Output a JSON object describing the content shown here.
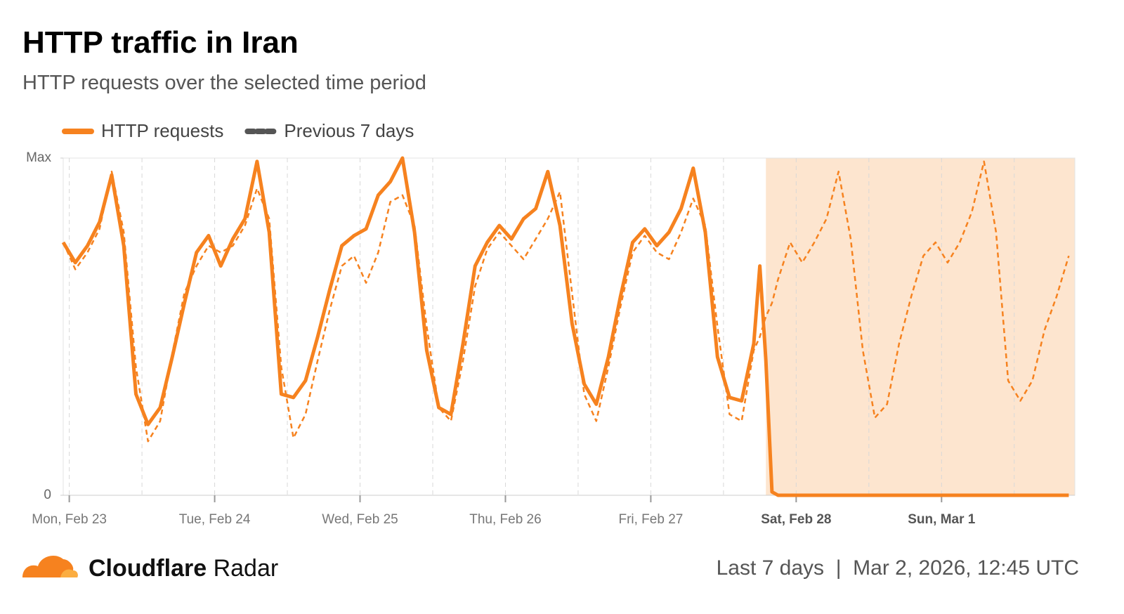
{
  "chart_data": {
    "type": "line",
    "title": "HTTP traffic in Iran",
    "subtitle": "HTTP requests over the selected time period",
    "x": [
      -1,
      1,
      3,
      5,
      7,
      9,
      11,
      13,
      15,
      17,
      19,
      21,
      23,
      25,
      27,
      29,
      31,
      33,
      35,
      37,
      39,
      41,
      43,
      45,
      47,
      49,
      51,
      53,
      55,
      57,
      59,
      61,
      63,
      65,
      67,
      69,
      71,
      73,
      75,
      77,
      79,
      81,
      83,
      85,
      87,
      89,
      91,
      93,
      95,
      97,
      99,
      101,
      103,
      105,
      107,
      109,
      111,
      113,
      114,
      115,
      116,
      117,
      119,
      121,
      123,
      125,
      127,
      129,
      131,
      133,
      135,
      137,
      139,
      141,
      143,
      145,
      147,
      149,
      151,
      153,
      155,
      157,
      159,
      161,
      163,
      165
    ],
    "series": [
      {
        "name": "HTTP requests",
        "color": "#f6821f",
        "dashed": false,
        "values": [
          75,
          69,
          74,
          81,
          95,
          74,
          30,
          21,
          26,
          41,
          57,
          72,
          77,
          68,
          76,
          82,
          99,
          78,
          30,
          29,
          34,
          47,
          61,
          74,
          77,
          79,
          89,
          93,
          100,
          78,
          43,
          26,
          24,
          45,
          68,
          75,
          80,
          76,
          82,
          85,
          96,
          80,
          51,
          33,
          27,
          41,
          59,
          75,
          79,
          74,
          78,
          85,
          97,
          78,
          41,
          29,
          28,
          45,
          68,
          40,
          1,
          0,
          0,
          0,
          0,
          0,
          0,
          0,
          0,
          0,
          0,
          0,
          0,
          0,
          0,
          0,
          0,
          0,
          0,
          0,
          0,
          0,
          0,
          0,
          0,
          0
        ]
      },
      {
        "name": "Previous 7 days",
        "color": "#f6821f",
        "dashed": true,
        "values": [
          75,
          67,
          72,
          79,
          96,
          78,
          38,
          16,
          22,
          42,
          60,
          68,
          74,
          72,
          74,
          80,
          91,
          82,
          38,
          17,
          24,
          40,
          55,
          68,
          71,
          63,
          72,
          87,
          89,
          80,
          50,
          26,
          22,
          40,
          62,
          73,
          78,
          74,
          70,
          76,
          82,
          90,
          60,
          30,
          22,
          38,
          56,
          72,
          77,
          72,
          70,
          78,
          88,
          80,
          50,
          24,
          22,
          43,
          47,
          53,
          57,
          64,
          75,
          69,
          75,
          82,
          96,
          76,
          43,
          23,
          27,
          45,
          59,
          71,
          75,
          69,
          75,
          84,
          99,
          78,
          34,
          28,
          34,
          49,
          59,
          71
        ]
      }
    ],
    "xlim": [
      -1,
      166
    ],
    "xticks": [
      {
        "value": 0,
        "label": "Mon, Feb 23"
      },
      {
        "value": 24,
        "label": "Tue, Feb 24"
      },
      {
        "value": 48,
        "label": "Wed, Feb 25"
      },
      {
        "value": 72,
        "label": "Thu, Feb 26"
      },
      {
        "value": 96,
        "label": "Fri, Feb 27"
      },
      {
        "value": 120,
        "label": "Sat, Feb 28"
      },
      {
        "value": 144,
        "label": "Sun, Mar 1"
      }
    ],
    "x_gridlines": [
      0,
      12,
      24,
      36,
      48,
      60,
      72,
      84,
      96,
      108,
      120,
      132,
      144,
      156
    ],
    "ylim": [
      0,
      100
    ],
    "yticks": [
      0,
      {
        "value": 100,
        "label": "Max"
      }
    ],
    "shaded_range": [
      115,
      166
    ],
    "footer": {
      "brand": "Cloudflare",
      "product": "Radar",
      "info": "Last 7 days  |  Mar 2, 2026, 12:45 UTC"
    }
  }
}
